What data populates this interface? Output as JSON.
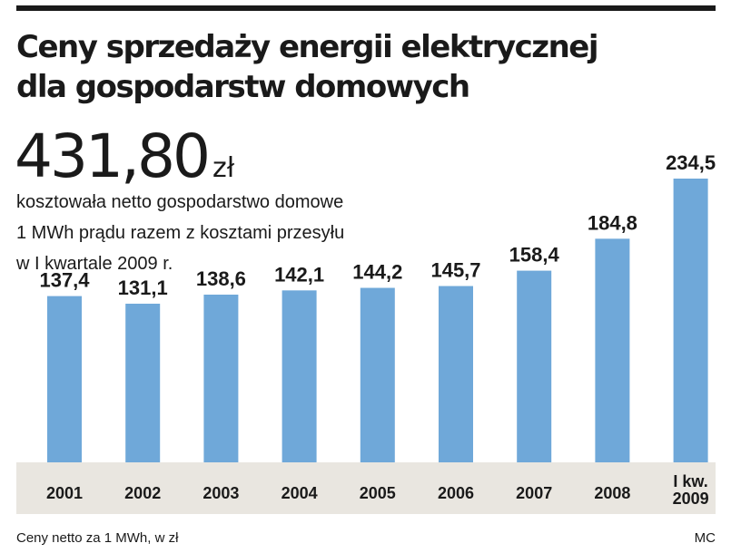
{
  "header": {
    "title_line1": "Ceny sprzedaży energii elektrycznej",
    "title_line2": "dla gospodarstw domowych"
  },
  "highlight": {
    "value": "431,80",
    "unit": "zł",
    "desc_line1": "kosztowała netto gospodarstwo domowe",
    "desc_line2": "1 MWh prądu razem z kosztami przesyłu",
    "desc_line3": "w I kwartale 2009 r."
  },
  "footer": {
    "note": "Ceny netto za 1 MWh, w zł",
    "credit": "MC"
  },
  "colors": {
    "bar": "#6fa8d9",
    "axis_band": "#e9e6e0",
    "text": "#1a1a1a"
  },
  "chart_data": {
    "type": "bar",
    "title": "Ceny sprzedaży energii elektrycznej dla gospodarstw domowych",
    "xlabel": "",
    "ylabel": "Ceny netto za 1 MWh, w zł",
    "categories": [
      [
        "2001"
      ],
      [
        "2002"
      ],
      [
        "2003"
      ],
      [
        "2004"
      ],
      [
        "2005"
      ],
      [
        "2006"
      ],
      [
        "2007"
      ],
      [
        "2008"
      ],
      [
        "I kw.",
        "2009"
      ]
    ],
    "values": [
      137.4,
      131.1,
      138.6,
      142.1,
      144.2,
      145.7,
      158.4,
      184.8,
      234.5
    ],
    "value_labels": [
      "137,4",
      "131,1",
      "138,6",
      "142,1",
      "144,2",
      "145,7",
      "158,4",
      "184,8",
      "234,5"
    ],
    "ylim": [
      0,
      234.5
    ],
    "grid": false,
    "legend": "none"
  }
}
